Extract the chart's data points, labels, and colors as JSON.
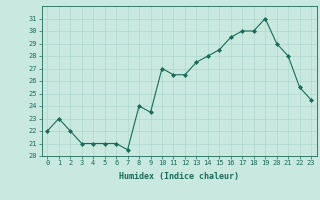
{
  "x": [
    0,
    1,
    2,
    3,
    4,
    5,
    6,
    7,
    8,
    9,
    10,
    11,
    12,
    13,
    14,
    15,
    16,
    17,
    18,
    19,
    20,
    21,
    22,
    23
  ],
  "y": [
    22,
    23,
    22,
    21,
    21,
    21,
    21,
    20.5,
    24,
    23.5,
    27,
    26.5,
    26.5,
    27.5,
    28,
    28.5,
    29.5,
    30,
    30,
    31,
    29,
    28,
    25.5,
    24.5
  ],
  "line_color": "#1a6b5a",
  "marker_color": "#1a6b5a",
  "bg_color": "#c8e8e0",
  "grid_color": "#b0d8d0",
  "xlabel": "Humidex (Indice chaleur)",
  "ylim": [
    20,
    32
  ],
  "xlim": [
    -0.5,
    23.5
  ],
  "yticks": [
    20,
    21,
    22,
    23,
    24,
    25,
    26,
    27,
    28,
    29,
    30,
    31
  ],
  "xticks": [
    0,
    1,
    2,
    3,
    4,
    5,
    6,
    7,
    8,
    9,
    10,
    11,
    12,
    13,
    14,
    15,
    16,
    17,
    18,
    19,
    20,
    21,
    22,
    23
  ],
  "tick_fontsize": 5.0,
  "xlabel_fontsize": 6.0
}
